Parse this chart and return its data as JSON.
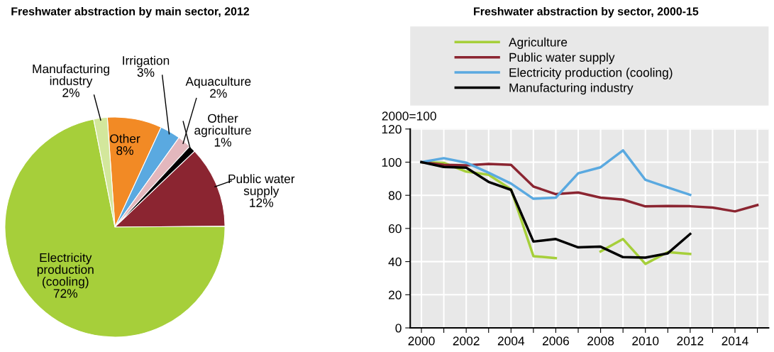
{
  "chart_data": [
    {
      "type": "pie",
      "title": "Freshwater abstraction by main sector, 2012",
      "categories": [
        "Other",
        "Irrigation",
        "Aquaculture",
        "Other agriculture",
        "Public water supply",
        "Electricity production (cooling)",
        "Manufacturing industry"
      ],
      "values": [
        8,
        3,
        2,
        1,
        12,
        72,
        2
      ],
      "value_labels": [
        "8%",
        "3%",
        "2%",
        "1%",
        "12%",
        "72%",
        "2%"
      ],
      "colors": [
        "#f28a25",
        "#5aa9e0",
        "#e3b7bd",
        "#000000",
        "#8b2531",
        "#a6cf3a",
        "#d3e79c"
      ]
    },
    {
      "type": "line",
      "title": "Freshwater abstraction by sector, 2000-15",
      "ylabel": "2000=100",
      "x": [
        2000,
        2001,
        2002,
        2003,
        2004,
        2005,
        2006,
        2007,
        2008,
        2009,
        2010,
        2011,
        2012,
        2013,
        2014,
        2015
      ],
      "series": [
        {
          "name": "Agriculture",
          "color": "#a6cf3a",
          "values": [
            100,
            99.6,
            94.3,
            92.4,
            83.6,
            43.3,
            42.1,
            null,
            46.1,
            53.6,
            38.6,
            45.7,
            44.6,
            null,
            null,
            null
          ]
        },
        {
          "name": "Public water supply",
          "color": "#8b2531",
          "values": [
            100,
            98.4,
            98.1,
            98.9,
            98.4,
            85.3,
            80.7,
            81.7,
            78.6,
            77.4,
            73.3,
            73.6,
            73.4,
            72.6,
            70.3,
            74.1
          ]
        },
        {
          "name": "Electricity production (cooling)",
          "color": "#5aa9e0",
          "values": [
            100,
            102.4,
            99.7,
            93.6,
            87.1,
            77.9,
            78.6,
            93.3,
            96.9,
            107.1,
            89.3,
            84.7,
            80.3,
            null,
            null,
            null
          ]
        },
        {
          "name": "Manufacturing industry",
          "color": "#000000",
          "values": [
            100,
            97.1,
            96.7,
            88.1,
            83.3,
            52.1,
            53.6,
            48.6,
            49,
            42.7,
            42.4,
            45,
            56.7,
            null,
            null,
            null
          ]
        }
      ],
      "xlim": [
        1999.5,
        2015.5
      ],
      "xticks": [
        2000,
        {
          "value": 2001,
          "label": null
        },
        2002,
        {
          "value": 2003,
          "label": null
        },
        2004,
        {
          "value": 2005,
          "label": null
        },
        2006,
        {
          "value": 2007,
          "label": null
        },
        2008,
        {
          "value": 2009,
          "label": null
        },
        2010,
        {
          "value": 2011,
          "label": null
        },
        2012,
        {
          "value": 2013,
          "label": null
        },
        2014,
        {
          "value": 2015,
          "label": null
        }
      ],
      "ylim": [
        0,
        120
      ],
      "yticks": [
        0,
        20,
        40,
        60,
        80,
        100,
        120
      ],
      "grid": true,
      "legend": "top",
      "marker": "none",
      "line_style": "solid"
    }
  ]
}
